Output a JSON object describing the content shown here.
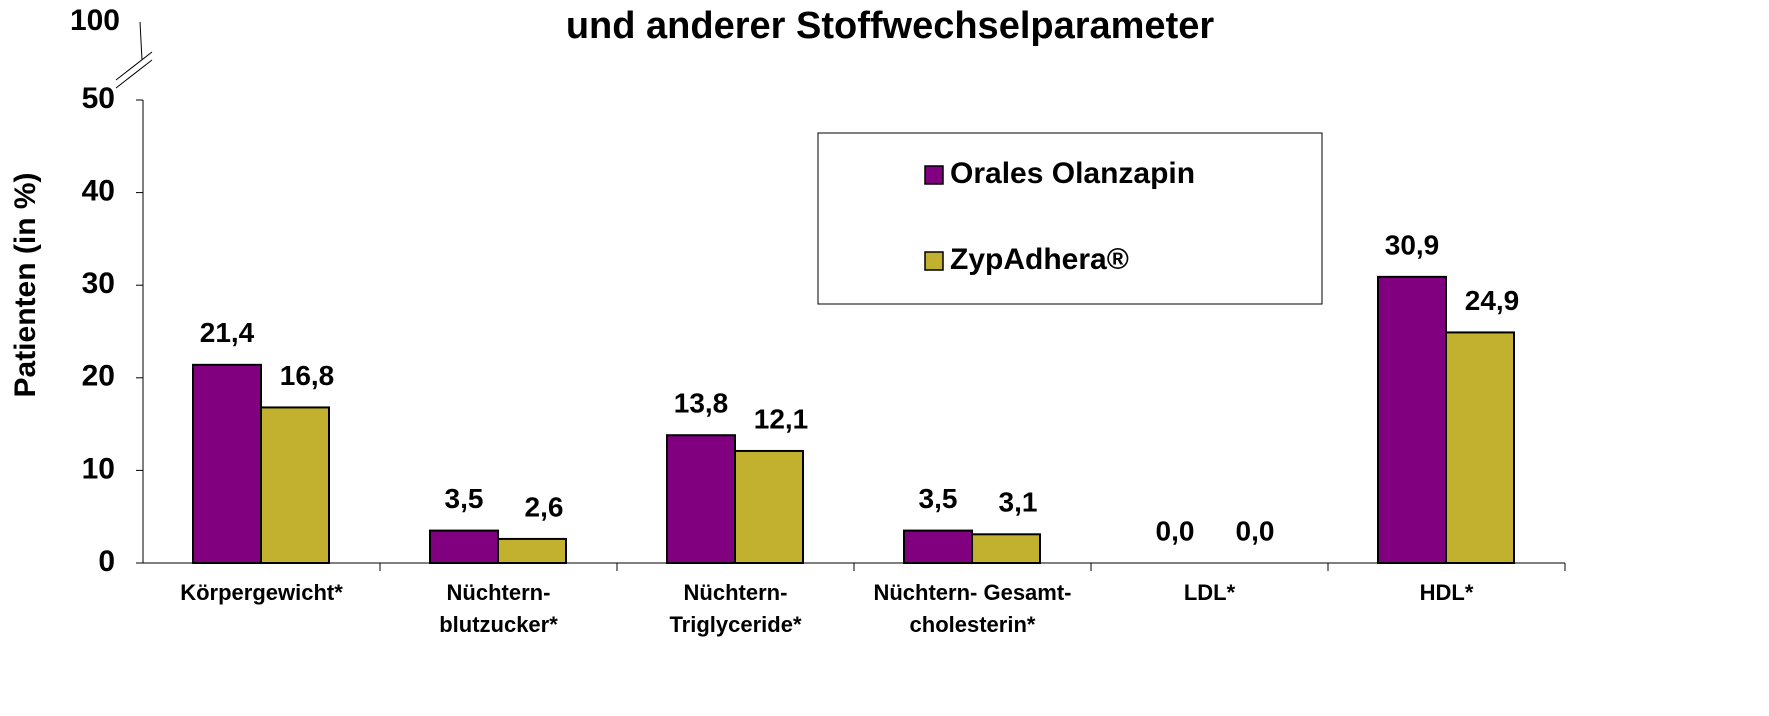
{
  "chart_data": {
    "type": "bar",
    "title": "und anderer Stoffwechselparameter",
    "y_label": "Patienten (in %)",
    "axis_break_tick": 100,
    "categories": [
      "Körpergewicht*",
      "Nüchtern-\nblutzucker*",
      "Nüchtern-\nTriglyceride*",
      "Nüchtern- Gesamt-\ncholesterin*",
      "LDL*",
      "HDL*"
    ],
    "series": [
      {
        "name": "Orales Olanzapin",
        "color": "#800080",
        "values": [
          21.4,
          3.5,
          13.8,
          3.5,
          0.0,
          30.9
        ],
        "value_labels": [
          "21,4",
          "3,5",
          "13,8",
          "3,5",
          "0,0",
          "30,9"
        ]
      },
      {
        "name": "ZypAdhera®",
        "color": "#c2b02f",
        "values": [
          16.8,
          2.6,
          12.1,
          3.1,
          0.0,
          24.9
        ],
        "value_labels": [
          "16,8",
          "2,6",
          "12,1",
          "3,1",
          "0,0",
          "24,9"
        ]
      }
    ],
    "ylim": [
      0,
      50
    ],
    "yticks": [
      0,
      10,
      20,
      30,
      40,
      50
    ],
    "grid": false
  }
}
